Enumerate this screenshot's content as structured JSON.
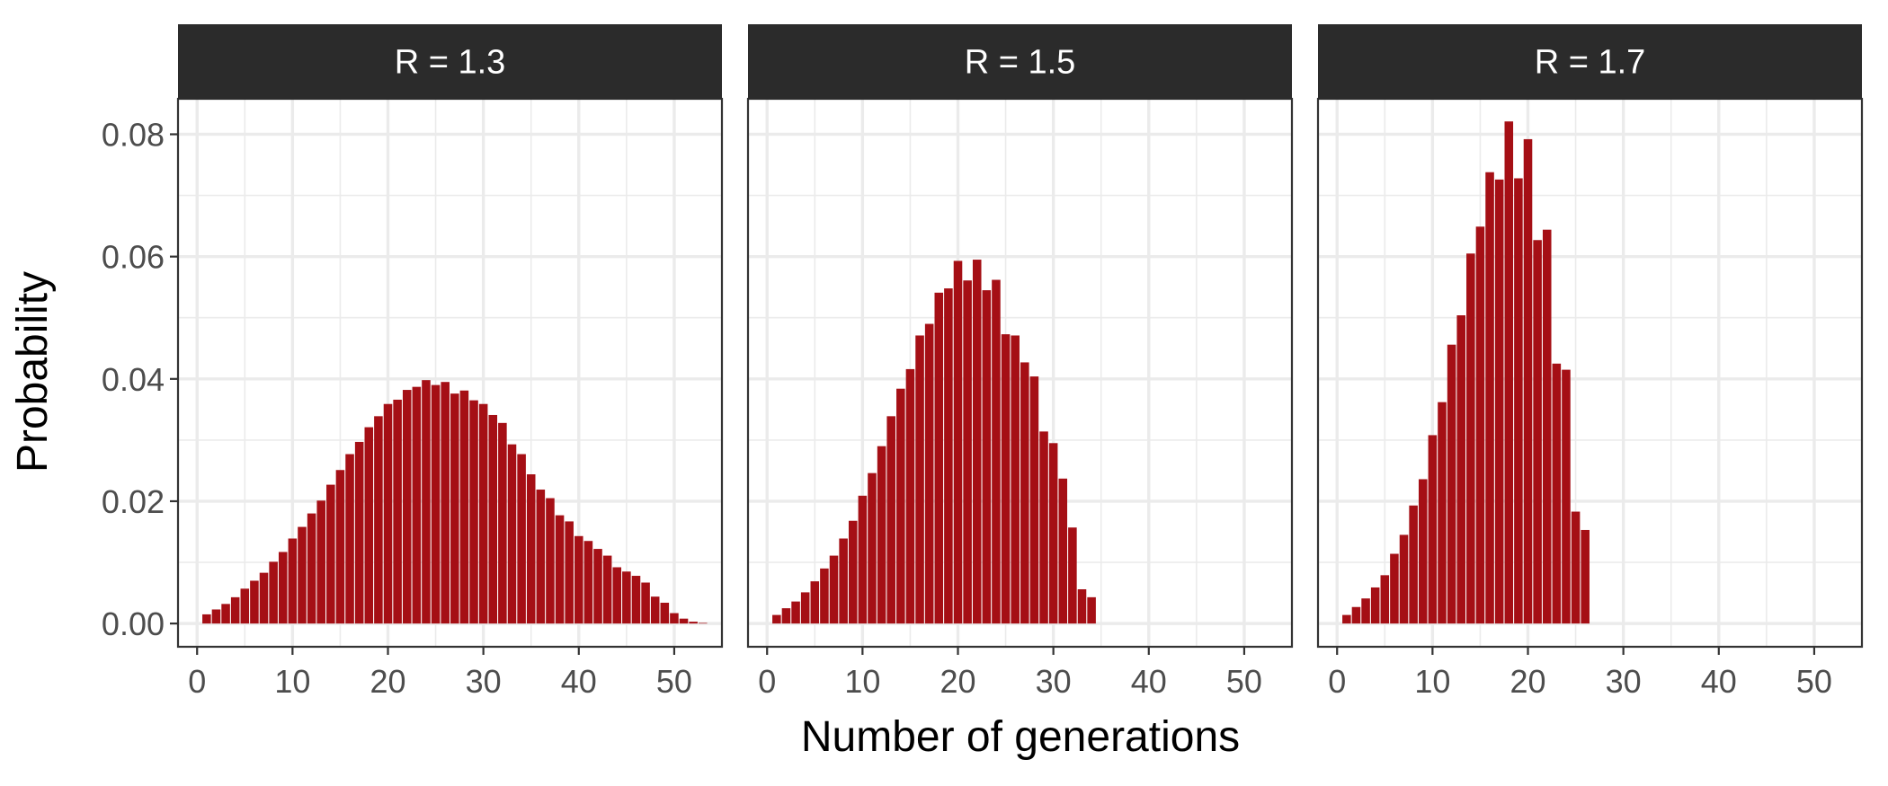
{
  "chart_data": {
    "type": "bar",
    "xlabel": "Number of generations",
    "ylabel": "Probability",
    "xlim": [
      -2,
      55
    ],
    "ylim": [
      -0.0038,
      0.0858
    ],
    "x_ticks": [
      0,
      10,
      20,
      30,
      40,
      50
    ],
    "y_ticks": [
      0.0,
      0.02,
      0.04,
      0.06,
      0.08
    ],
    "x_tick_labels": [
      "0",
      "10",
      "20",
      "30",
      "40",
      "50"
    ],
    "y_tick_labels": [
      "0.00",
      "0.02",
      "0.04",
      "0.06",
      "0.08"
    ],
    "grid": true,
    "bar_color": "#A50F15",
    "panel_strip_color": "#2B2B2B",
    "panels": [
      {
        "label": "R = 1.3",
        "x": [
          1,
          2,
          3,
          4,
          5,
          6,
          7,
          8,
          9,
          10,
          11,
          12,
          13,
          14,
          15,
          16,
          17,
          18,
          19,
          20,
          21,
          22,
          23,
          24,
          25,
          26,
          27,
          28,
          29,
          30,
          31,
          32,
          33,
          34,
          35,
          36,
          37,
          38,
          39,
          40,
          41,
          42,
          43,
          44,
          45,
          46,
          47,
          48,
          49,
          50,
          51,
          52,
          53
        ],
        "values": [
          0.0015,
          0.0023,
          0.0032,
          0.0043,
          0.0057,
          0.007,
          0.0083,
          0.0101,
          0.0117,
          0.0139,
          0.0158,
          0.018,
          0.0201,
          0.0227,
          0.0251,
          0.0277,
          0.0297,
          0.0321,
          0.0339,
          0.0359,
          0.0366,
          0.0382,
          0.0387,
          0.0398,
          0.039,
          0.0395,
          0.0376,
          0.0381,
          0.0365,
          0.0359,
          0.0341,
          0.0328,
          0.0293,
          0.0277,
          0.0244,
          0.0219,
          0.0205,
          0.0177,
          0.0167,
          0.0143,
          0.0135,
          0.0122,
          0.0111,
          0.0092,
          0.0085,
          0.0078,
          0.0067,
          0.0044,
          0.0034,
          0.0017,
          0.0008,
          0.0003,
          0.0001
        ]
      },
      {
        "label": "R = 1.5",
        "x": [
          1,
          2,
          3,
          4,
          5,
          6,
          7,
          8,
          9,
          10,
          11,
          12,
          13,
          14,
          15,
          16,
          17,
          18,
          19,
          20,
          21,
          22,
          23,
          24,
          25,
          26,
          27,
          28,
          29,
          30,
          31,
          32,
          33,
          34
        ],
        "values": [
          0.0014,
          0.0025,
          0.0036,
          0.0051,
          0.0069,
          0.009,
          0.0111,
          0.0139,
          0.0168,
          0.0209,
          0.0246,
          0.029,
          0.0339,
          0.0384,
          0.0416,
          0.0471,
          0.049,
          0.0541,
          0.0548,
          0.0593,
          0.0561,
          0.0595,
          0.0545,
          0.0562,
          0.0473,
          0.0471,
          0.0427,
          0.0404,
          0.0314,
          0.0295,
          0.0237,
          0.0157,
          0.0056,
          0.0043
        ]
      },
      {
        "label": "R = 1.7",
        "x": [
          1,
          2,
          3,
          4,
          5,
          6,
          7,
          8,
          9,
          10,
          11,
          12,
          13,
          14,
          15,
          16,
          17,
          18,
          19,
          20,
          21,
          22,
          23,
          24,
          25,
          26
        ],
        "values": [
          0.0014,
          0.0027,
          0.0041,
          0.0059,
          0.0079,
          0.0114,
          0.0145,
          0.0193,
          0.0236,
          0.0308,
          0.0362,
          0.0456,
          0.0504,
          0.0605,
          0.0649,
          0.0738,
          0.0726,
          0.0821,
          0.0728,
          0.0792,
          0.0627,
          0.0644,
          0.0425,
          0.0415,
          0.0183,
          0.0153
        ]
      }
    ]
  }
}
